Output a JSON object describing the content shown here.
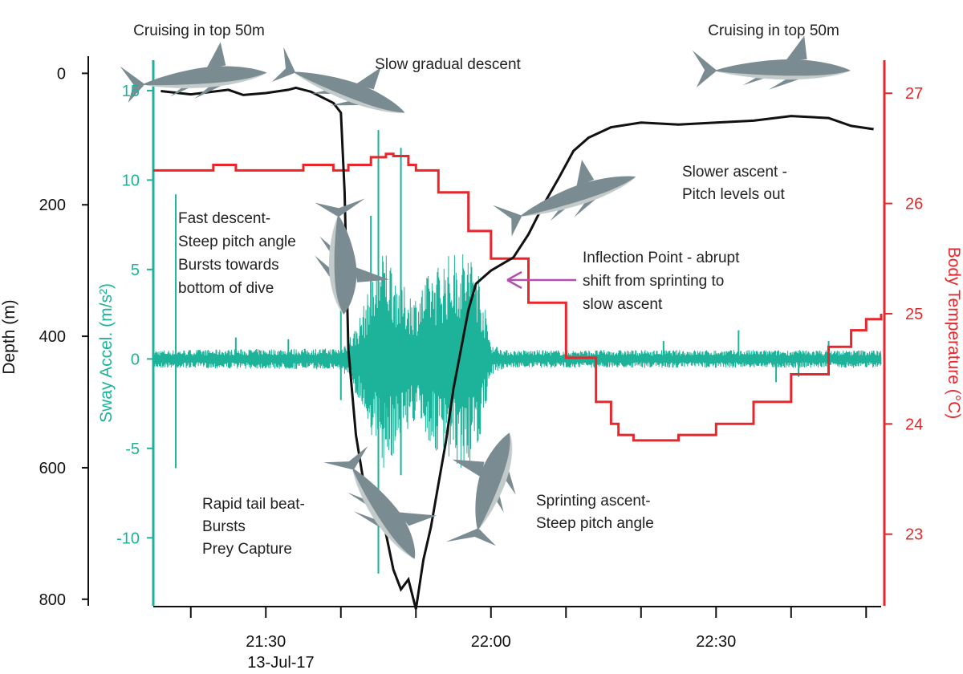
{
  "chart_data": {
    "type": "line",
    "x_axis": {
      "ticks": [
        "21:30",
        "22:00",
        "22:30"
      ],
      "date_label": "13-Jul-17",
      "range": [
        "21:15",
        "22:52"
      ]
    },
    "axes": {
      "depth": {
        "label": "Depth (m)",
        "range": [
          -20,
          810
        ],
        "inverted": true,
        "ticks": [
          0,
          200,
          400,
          600,
          800
        ],
        "color": "#111111"
      },
      "sway": {
        "label": "Sway Accel. (m/s²)",
        "range": [
          -13.8,
          16.7
        ],
        "ticks": [
          "15",
          "10",
          "5",
          "0",
          "-5",
          "-10"
        ],
        "color": "#1cb39a"
      },
      "temp": {
        "label": "Body Temperature (°C)",
        "range": [
          22.35,
          27.3
        ],
        "ticks": [
          "27",
          "26",
          "25",
          "24",
          "23"
        ],
        "color": "#e8262b"
      }
    },
    "series": [
      {
        "key": "depth",
        "axis": "depth",
        "color": "#111111",
        "x": [
          "21:16",
          "21:20",
          "21:25",
          "21:27",
          "21:30",
          "21:33",
          "21:34",
          "21:36",
          "21:39",
          "21:40",
          "21:40:30",
          "21:41",
          "21:42",
          "21:43",
          "21:44",
          "21:45",
          "21:46",
          "21:47",
          "21:48",
          "21:49",
          "21:50",
          "21:51",
          "21:52",
          "21:53",
          "21:54",
          "21:55",
          "21:56",
          "21:57",
          "21:58",
          "22:00",
          "22:03",
          "22:05",
          "22:07",
          "22:09",
          "22:11",
          "22:13",
          "22:16",
          "22:20",
          "22:25",
          "22:30",
          "22:35",
          "22:40",
          "22:45",
          "22:48",
          "22:51"
        ],
        "y": [
          27,
          32,
          25,
          33,
          30,
          25,
          22,
          28,
          45,
          60,
          180,
          420,
          550,
          620,
          645,
          660,
          700,
          755,
          785,
          770,
          815,
          740,
          690,
          625,
          560,
          480,
          420,
          360,
          320,
          300,
          280,
          245,
          200,
          160,
          118,
          98,
          82,
          75,
          78,
          75,
          72,
          65,
          68,
          80,
          85
        ]
      },
      {
        "key": "temp",
        "axis": "temp",
        "color": "#e8262b",
        "x": [
          "21:15",
          "21:22",
          "21:23",
          "21:26",
          "21:30",
          "21:35",
          "21:39",
          "21:41",
          "21:44",
          "21:46",
          "21:47",
          "21:49",
          "21:50",
          "21:53",
          "21:57",
          "22:00",
          "22:05",
          "22:10",
          "22:14",
          "22:16",
          "22:17",
          "22:19",
          "22:22",
          "22:25",
          "22:30",
          "22:35",
          "22:40",
          "22:45",
          "22:48",
          "22:50",
          "22:52"
        ],
        "y": [
          26.3,
          26.3,
          26.35,
          26.3,
          26.3,
          26.35,
          26.3,
          26.35,
          26.42,
          26.45,
          26.43,
          26.35,
          26.3,
          26.1,
          25.75,
          25.5,
          25.1,
          24.6,
          24.2,
          24.0,
          23.9,
          23.85,
          23.85,
          23.9,
          24.0,
          24.2,
          24.45,
          24.7,
          24.85,
          24.95,
          25.0
        ]
      },
      {
        "key": "sway",
        "axis": "sway",
        "color": "#1cb39a",
        "x": [
          "21:15",
          "21:40",
          "21:42",
          "21:44",
          "21:46",
          "21:48",
          "21:50",
          "21:52",
          "21:54",
          "21:56",
          "21:58",
          "22:00",
          "22:02",
          "22:52"
        ],
        "amplitude": [
          0.5,
          0.6,
          1.8,
          4.2,
          6.5,
          4.2,
          3.6,
          5.0,
          5.8,
          6.2,
          6.0,
          0.9,
          0.5,
          0.5
        ],
        "spikes": [
          {
            "x": "21:18",
            "y": -6.1
          },
          {
            "x": "21:18",
            "y": 9.2
          },
          {
            "x": "21:26",
            "y": 1.2
          },
          {
            "x": "21:33",
            "y": 1.1
          },
          {
            "x": "21:40",
            "y": -2.3
          },
          {
            "x": "21:40",
            "y": 4.8
          },
          {
            "x": "21:42",
            "y": -1.9
          },
          {
            "x": "21:44",
            "y": 8.0
          },
          {
            "x": "21:45",
            "y": 12.8
          },
          {
            "x": "21:45",
            "y": -12.0
          },
          {
            "x": "21:46",
            "y": -4.5
          },
          {
            "x": "21:48",
            "y": 11.8
          },
          {
            "x": "21:48",
            "y": -6.5
          },
          {
            "x": "22:23",
            "y": 1.0
          },
          {
            "x": "22:33",
            "y": 1.6
          },
          {
            "x": "22:38",
            "y": -1.3
          },
          {
            "x": "22:41",
            "y": -1.0
          },
          {
            "x": "22:45",
            "y": 1.0
          }
        ]
      }
    ],
    "annotations": {
      "cruise_left": "Cruising in top 50m",
      "cruise_right": "Cruising in top 50m",
      "slow_descent": "Slow gradual descent",
      "fast_descent": [
        "Fast descent-",
        "Steep pitch angle",
        "Bursts towards",
        "bottom of dive"
      ],
      "slower_ascent": [
        "Slower ascent -",
        "Pitch levels out"
      ],
      "inflection": [
        "Inflection Point - abrupt",
        "shift from sprinting to",
        "slow ascent"
      ],
      "tail_beat": [
        "Rapid tail beat-",
        "Bursts",
        "Prey Capture"
      ],
      "sprinting": [
        "Sprinting ascent-",
        "Steep pitch angle"
      ]
    },
    "arrow_color": "#b44fb0",
    "shark_color": "#7a8c92",
    "grid": false,
    "legend": "none"
  }
}
